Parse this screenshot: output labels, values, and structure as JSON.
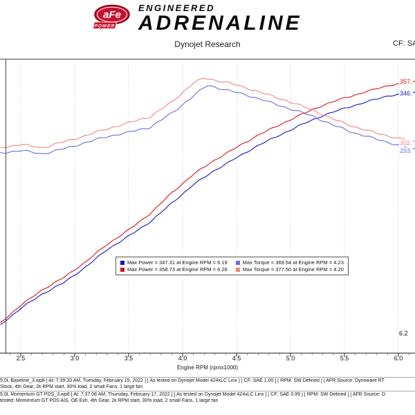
{
  "header": {
    "logo": {
      "afe": "aFe",
      "power": "POWER"
    },
    "brand_top": "ENGINEERED",
    "brand_main": "ADRENALINE",
    "subtitle": "Dynojet Research",
    "cf_label": "CF: SA"
  },
  "chart_data": {
    "type": "line",
    "title": "",
    "xlabel": "Engine RPM (rpmx1000)",
    "xlim": [
      2.31,
      6.3
    ],
    "x_ticks": [
      2.5,
      3.0,
      3.5,
      4.0,
      4.5,
      5.0,
      5.5,
      6.0
    ],
    "x_tick_labels": [
      "2.5",
      "3.0",
      "3.5",
      "4.0",
      "4.5",
      "5.0",
      "5.5",
      "6.0"
    ],
    "power_ylim": [
      95,
      380
    ],
    "torque_ylim": [
      60,
      400
    ],
    "grid": "vertical-dotted",
    "legend_position": "lower-center-overlay",
    "cursor_rpm_label": "6.2",
    "series": [
      {
        "name": "baseline-power",
        "kind": "power",
        "color": "#1414c8",
        "jitter": 0.8,
        "end_label": "346.",
        "end_value": 346.4,
        "x": [
          2.31,
          2.5,
          2.7,
          2.9,
          3.1,
          3.3,
          3.5,
          3.7,
          3.9,
          4.1,
          4.3,
          4.5,
          4.7,
          4.9,
          5.1,
          5.3,
          5.5,
          5.7,
          5.9,
          6.1,
          6.19,
          6.3
        ],
        "values": [
          122,
          138,
          152,
          163,
          178,
          195,
          208,
          222,
          240,
          258,
          272,
          284,
          296,
          306,
          316,
          325,
          332,
          338,
          344,
          346.8,
          347.31,
          346.2
        ]
      },
      {
        "name": "baseline-torque",
        "kind": "torque",
        "color": "#6a6ae6",
        "jitter": 1.3,
        "end_label": "293.",
        "end_value": 293.6,
        "x": [
          2.31,
          2.5,
          2.7,
          2.9,
          3.1,
          3.3,
          3.5,
          3.7,
          3.9,
          4.1,
          4.23,
          4.4,
          4.6,
          4.8,
          5.0,
          5.2,
          5.4,
          5.6,
          5.8,
          6.0,
          6.2,
          6.3
        ],
        "values": [
          291,
          294,
          290,
          296,
          303,
          310,
          315,
          321,
          337,
          357,
          369.54,
          364,
          358,
          350,
          342,
          334,
          323,
          314,
          307,
          300,
          293.6,
          292.5
        ]
      },
      {
        "name": "momentum-power",
        "kind": "power",
        "color": "#d41616",
        "jitter": 0.8,
        "end_label": "357.",
        "end_value": 357.8,
        "x": [
          2.31,
          2.5,
          2.7,
          2.9,
          3.1,
          3.3,
          3.5,
          3.7,
          3.9,
          4.1,
          4.3,
          4.5,
          4.7,
          4.9,
          5.1,
          5.3,
          5.5,
          5.7,
          5.9,
          6.1,
          6.26,
          6.3
        ],
        "values": [
          124,
          141,
          156,
          168,
          183,
          200,
          214,
          230,
          250,
          268,
          282,
          294,
          306,
          316,
          326,
          335,
          342,
          348,
          354,
          357.2,
          358.73,
          358.0
        ]
      },
      {
        "name": "momentum-torque",
        "kind": "torque",
        "color": "#ef8484",
        "jitter": 1.3,
        "end_label": "302.",
        "end_value": 302.4,
        "x": [
          2.31,
          2.5,
          2.7,
          2.9,
          3.1,
          3.3,
          3.5,
          3.7,
          3.9,
          4.1,
          4.2,
          4.4,
          4.6,
          4.8,
          5.0,
          5.2,
          5.4,
          5.6,
          5.8,
          6.0,
          6.2,
          6.3
        ],
        "values": [
          297,
          301,
          297,
          304,
          311,
          319,
          326,
          333,
          350,
          372,
          377.5,
          373,
          366,
          358,
          350,
          341,
          330,
          321,
          314,
          308,
          302.4,
          301.5
        ]
      }
    ],
    "legend": [
      {
        "color": "#1414c8",
        "text": "Max Power = 347.31 at Engine RPM = 6.19"
      },
      {
        "color": "#6a6ae6",
        "text": "Max Torque = 369.54 at Engine RPM = 4.23"
      },
      {
        "color": "#d41616",
        "text": "Max Power = 358.73 at Engine RPM = 6.26"
      },
      {
        "color": "#ef8484",
        "text": "Max Torque = 377.50 at Engine RPM = 4.20"
      }
    ]
  },
  "footer": {
    "runs": [
      {
        "file_line": "5.0L Baseline_3.wp8  [ At: 7:39:33 AM, Tuesday, February 15, 2022 ]  [ As tested on Dynojet Model 424xLC Linx ]  [ CF: SAE 1.00 ]  [ RPM: SW Defined ]  [ AFR Source: Dynoware RT",
        "notes_line": "Stock, 4th Gear, 2k RPM start, 30% load, 2 small Fans, 1 large fan"
      },
      {
        "file_line": "5.0L Momentum GT PDS_3.wp8  [ At: 7:37:08 AM, Thursday, February 17, 2022 ]  [ As tested on Dynojet Model 424xLC Linx ]  [ CF: SAE 0.99 ]  [ RPM: SW Defined ]  [ AFR Source: D",
        "notes_line": "tested:  Momentum GT PDS AIS, OE Exh, 4th Gear, 2k RPM start, 30% load, 2 small Fans, 1 large fan"
      }
    ]
  }
}
